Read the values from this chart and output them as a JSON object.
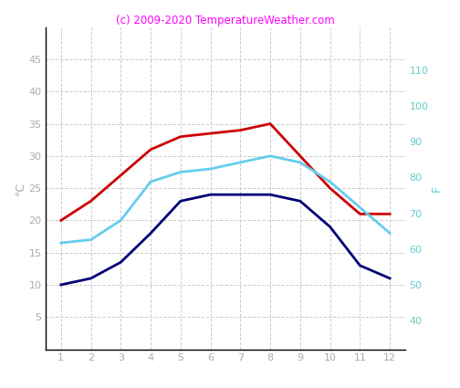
{
  "months": [
    1,
    2,
    3,
    4,
    5,
    6,
    7,
    8,
    9,
    10,
    11,
    12
  ],
  "red_line": [
    20,
    23,
    27,
    31,
    33,
    33.5,
    34,
    35,
    30,
    25,
    21,
    21
  ],
  "cyan_line": [
    16.5,
    17,
    20,
    26,
    27.5,
    28,
    29,
    30,
    29,
    26,
    22,
    18
  ],
  "blue_line": [
    10,
    11,
    13.5,
    18,
    23,
    24,
    24,
    24,
    23,
    19,
    13,
    11
  ],
  "red_color": "#cc0000",
  "cyan_color": "#66ccee",
  "blue_color": "#000077",
  "title": "(c) 2009-2020 TemperatureWeather.com",
  "title_color": "#ff00ff",
  "ylabel_left": "°C",
  "ylabel_right": "F",
  "ylim_left": [
    0,
    50
  ],
  "ylim_right": [
    32,
    122
  ],
  "yticks_left": [
    5,
    10,
    15,
    20,
    25,
    30,
    35,
    40,
    45
  ],
  "yticks_right": [
    40,
    50,
    60,
    70,
    80,
    90,
    100,
    110
  ],
  "xticks": [
    1,
    2,
    3,
    4,
    5,
    6,
    7,
    8,
    9,
    10,
    11,
    12
  ],
  "grid_color": "#cccccc",
  "tick_color": "#aaaaaa",
  "right_tick_color": "#66cccc",
  "background_color": "#ffffff",
  "line_width": 2.0,
  "title_fontsize": 8.5,
  "tick_fontsize": 8
}
